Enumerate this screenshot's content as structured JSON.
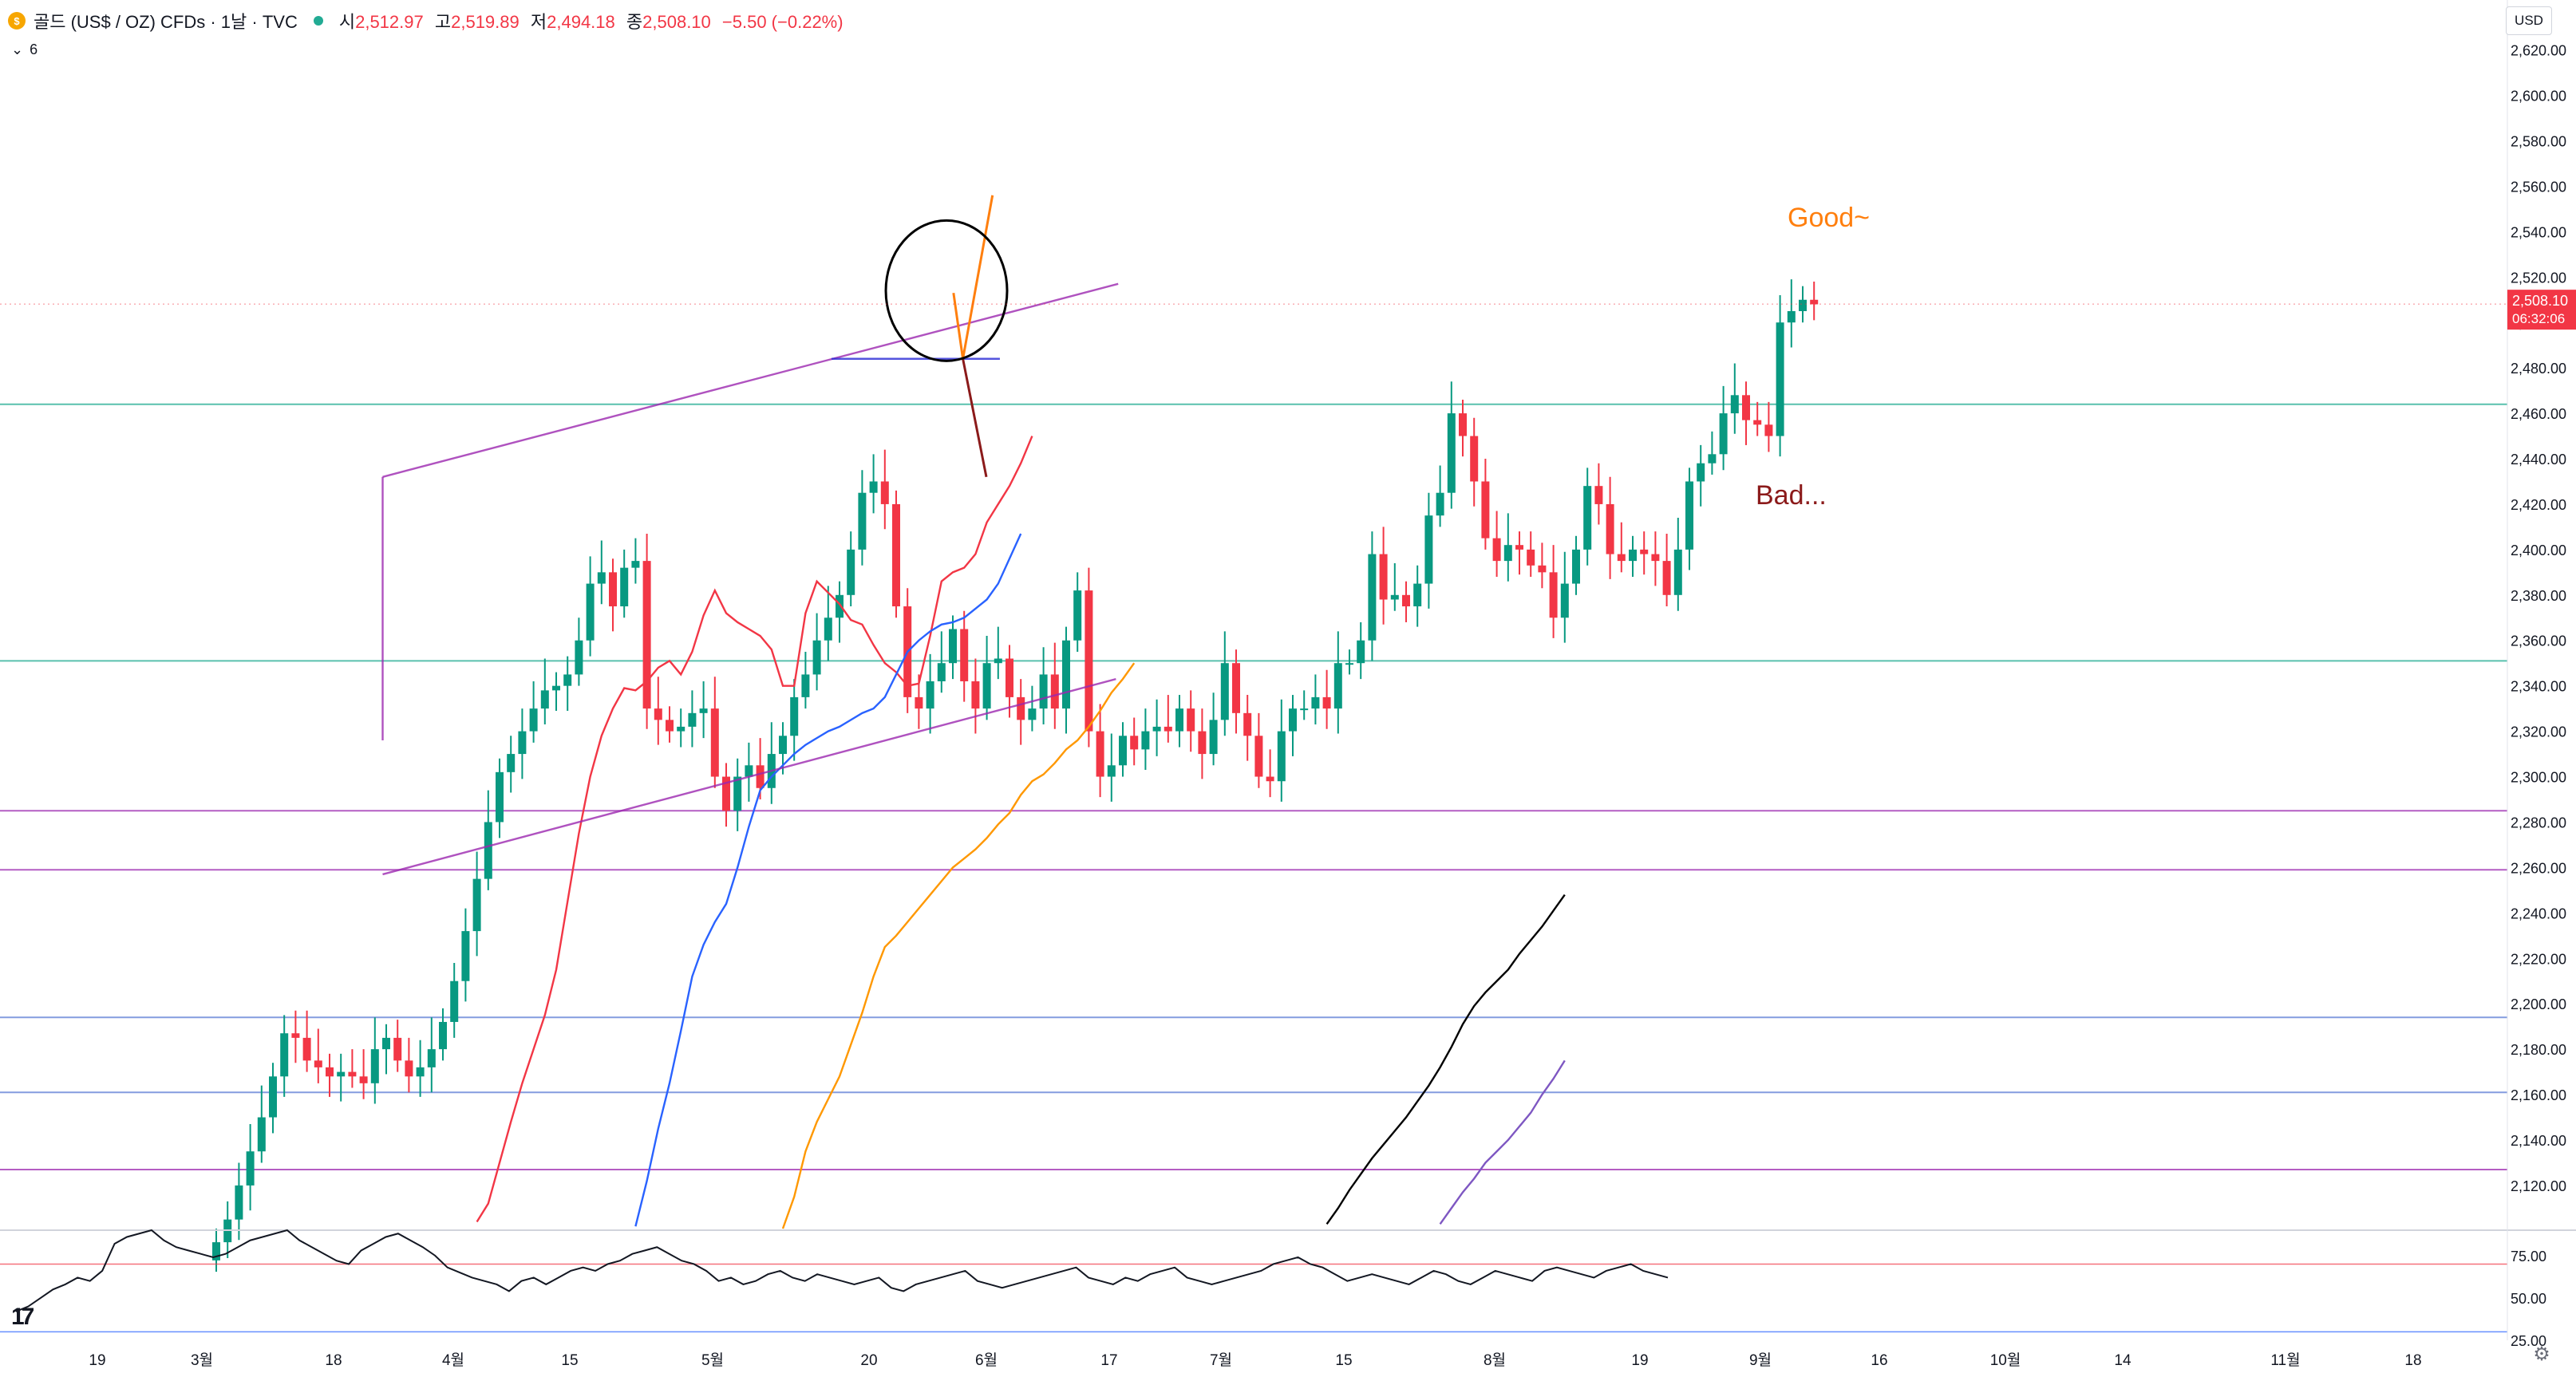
{
  "header": {
    "symbol": "골드 (US$ / OZ) CFDs · 1날 · TVC",
    "symbol_icon": "gold-coin-icon",
    "open_label": "시",
    "open_value": "2,512.97",
    "high_label": "고",
    "high_value": "2,519.89",
    "low_label": "저",
    "low_value": "2,494.18",
    "close_label": "종",
    "close_value": "2,508.10",
    "change": "−5.50 (−0.22%)",
    "indicator_toggle": "⌄",
    "indicator_count": "6"
  },
  "currency_button": "USD",
  "colors": {
    "up": "#089981",
    "down": "#f23645",
    "ema_red": "#f23645",
    "ema_blue": "#2962ff",
    "ema_orange": "#ff9800",
    "ema_black": "#000000",
    "ema_purple": "#7e57c2",
    "good": "#ff7f0e",
    "bad": "#8b1a1a"
  },
  "chart_data": {
    "type": "candlestick",
    "x_labels": [
      "19",
      "3월",
      "18",
      "4월",
      "15",
      "5월",
      "20",
      "6월",
      "17",
      "7월",
      "15",
      "8월",
      "19",
      "9월",
      "16",
      "10월",
      "14",
      "11월",
      "18"
    ],
    "y_ticks": [
      "2,620.00",
      "2,600.00",
      "2,580.00",
      "2,560.00",
      "2,540.00",
      "2,520.00",
      "2,500.00",
      "2,480.00",
      "2,460.00",
      "2,440.00",
      "2,420.00",
      "2,400.00",
      "2,380.00",
      "2,360.00",
      "2,340.00",
      "2,320.00",
      "2,300.00",
      "2,280.00",
      "2,260.00",
      "2,240.00",
      "2,220.00",
      "2,200.00",
      "2,180.00",
      "2,160.00",
      "2,140.00",
      "2,120.00"
    ],
    "ylim": [
      2101,
      2642
    ],
    "last_price": "2,508.10",
    "countdown": "06:32:06",
    "horizontal_levels": [
      {
        "price": 2464,
        "color": "#22ab94"
      },
      {
        "price": 2351,
        "color": "#22ab94"
      },
      {
        "price": 2285,
        "color": "#9c27b0"
      },
      {
        "price": 2259,
        "color": "#9c27b0"
      },
      {
        "price": 2194,
        "color": "#5b7bd5"
      },
      {
        "price": 2161,
        "color": "#5b7bd5"
      },
      {
        "price": 2127,
        "color": "#9c27b0"
      }
    ],
    "closes": [
      2095,
      2105,
      2120,
      2135,
      2150,
      2168,
      2187,
      2185,
      2175,
      2172,
      2168,
      2170,
      2168,
      2165,
      2180,
      2185,
      2175,
      2168,
      2172,
      2180,
      2192,
      2210,
      2232,
      2255,
      2280,
      2302,
      2310,
      2320,
      2330,
      2338,
      2340,
      2345,
      2360,
      2385,
      2390,
      2375,
      2392,
      2395,
      2330,
      2325,
      2320,
      2322,
      2328,
      2330,
      2300,
      2285,
      2300,
      2305,
      2295,
      2310,
      2318,
      2335,
      2345,
      2360,
      2370,
      2380,
      2400,
      2425,
      2430,
      2420,
      2375,
      2335,
      2330,
      2342,
      2350,
      2365,
      2342,
      2330,
      2350,
      2352,
      2335,
      2325,
      2330,
      2345,
      2330,
      2360,
      2382,
      2320,
      2300,
      2305,
      2318,
      2312,
      2320,
      2322,
      2320,
      2330,
      2320,
      2310,
      2325,
      2350,
      2328,
      2318,
      2300,
      2298,
      2320,
      2330,
      2330,
      2335,
      2330,
      2350,
      2350,
      2360,
      2398,
      2378,
      2380,
      2375,
      2385,
      2415,
      2425,
      2460,
      2450,
      2430,
      2405,
      2395,
      2402,
      2400,
      2393,
      2390,
      2370,
      2385,
      2400,
      2428,
      2420,
      2398,
      2395,
      2400,
      2398,
      2395,
      2380,
      2400,
      2430,
      2438,
      2442,
      2460,
      2468,
      2457,
      2455,
      2450,
      2500,
      2505,
      2510,
      2508
    ],
    "ema_fast": {
      "start": 23,
      "values": [
        2104,
        2112,
        2130,
        2148,
        2165,
        2180,
        2195,
        2215,
        2245,
        2275,
        2300,
        2318,
        2330,
        2339,
        2338,
        2342,
        2348,
        2351,
        2345,
        2355,
        2371,
        2382,
        2372,
        2368,
        2365,
        2362,
        2356,
        2340,
        2340,
        2372,
        2386,
        2381,
        2376,
        2369,
        2367,
        2358,
        2350,
        2346,
        2340,
        2341,
        2362,
        2386,
        2390,
        2392,
        2398,
        2412,
        2420,
        2428,
        2438,
        2450
      ]
    },
    "ema_mid": {
      "start": 37,
      "values": [
        2102,
        2122,
        2145,
        2165,
        2188,
        2212,
        2226,
        2236,
        2244,
        2260,
        2278,
        2294,
        2300,
        2305,
        2310,
        2314,
        2317,
        2320,
        2322,
        2325,
        2328,
        2330,
        2335,
        2345,
        2355,
        2360,
        2364,
        2367,
        2368,
        2370,
        2374,
        2378,
        2385,
        2396,
        2407
      ]
    },
    "ema_slow": {
      "start": 50,
      "values": [
        2101,
        2115,
        2135,
        2148,
        2158,
        2168,
        2182,
        2196,
        2212,
        2225,
        2230,
        2236,
        2242,
        2248,
        2254,
        2260,
        2264,
        2268,
        2273,
        2279,
        2284,
        2292,
        2298,
        2301,
        2306,
        2312,
        2316,
        2322,
        2329,
        2337,
        2343,
        2350
      ]
    },
    "ema_longer": {
      "start": 98,
      "values": [
        2103,
        2110,
        2118,
        2125,
        2132,
        2138,
        2144,
        2150,
        2157,
        2164,
        2172,
        2181,
        2191,
        2199,
        2205,
        2210,
        2215,
        2222,
        2228,
        2234,
        2241,
        2248
      ]
    },
    "ema_longest": {
      "start": 108,
      "values": [
        2103,
        2110,
        2117,
        2123,
        2130,
        2135,
        2140,
        2146,
        2152,
        2160,
        2167,
        2175
      ]
    },
    "trendlines": [
      {
        "x1": 2.41,
        "y1": 2432,
        "x2": 2.41,
        "y2": 2316,
        "color": "#9c27b0"
      },
      {
        "x1": 2.41,
        "y1": 2432,
        "x2": 8.08,
        "y2": 2517,
        "color": "#9c27b0"
      },
      {
        "x1": 2.41,
        "y1": 2257,
        "x2": 8.06,
        "y2": 2343,
        "color": "#9c27b0"
      },
      {
        "x1": 5.76,
        "y1": 2484,
        "x2": 7.11,
        "y2": 2484,
        "color": "#2a2ad6"
      }
    ],
    "projections": {
      "good": {
        "label": "Good~",
        "points": [
          [
            6.72,
            2513
          ],
          [
            6.8,
            2484
          ],
          [
            7.05,
            2556
          ]
        ]
      },
      "bad": {
        "label": "Bad...",
        "points": [
          [
            6.8,
            2484
          ],
          [
            7.0,
            2432
          ]
        ]
      }
    },
    "highlight_circle": {
      "cx": 6.66,
      "cy": 2514,
      "color": "#000000"
    },
    "rsi": {
      "y_ticks": [
        "75.00",
        "50.00",
        "25.00"
      ],
      "ylim": [
        25,
        90
      ],
      "upper": 70,
      "lower": 30,
      "values": [
        42,
        45,
        50,
        55,
        58,
        62,
        60,
        66,
        82,
        86,
        88,
        90,
        84,
        80,
        78,
        76,
        74,
        76,
        80,
        84,
        86,
        88,
        90,
        84,
        80,
        76,
        72,
        70,
        78,
        82,
        86,
        88,
        84,
        80,
        75,
        68,
        65,
        62,
        60,
        58,
        54,
        60,
        62,
        58,
        62,
        66,
        68,
        66,
        70,
        72,
        76,
        78,
        80,
        76,
        72,
        70,
        66,
        60,
        62,
        58,
        60,
        64,
        66,
        62,
        60,
        64,
        62,
        60,
        58,
        60,
        62,
        56,
        54,
        58,
        60,
        62,
        64,
        66,
        60,
        58,
        56,
        58,
        60,
        62,
        64,
        66,
        68,
        62,
        60,
        58,
        62,
        60,
        64,
        66,
        68,
        62,
        60,
        58,
        60,
        62,
        64,
        66,
        70,
        72,
        74,
        70,
        68,
        64,
        60,
        62,
        64,
        62,
        60,
        58,
        62,
        66,
        64,
        60,
        58,
        62,
        66,
        64,
        62,
        60,
        66,
        68,
        66,
        64,
        62,
        66,
        68,
        70,
        66,
        64,
        62
      ]
    }
  }
}
